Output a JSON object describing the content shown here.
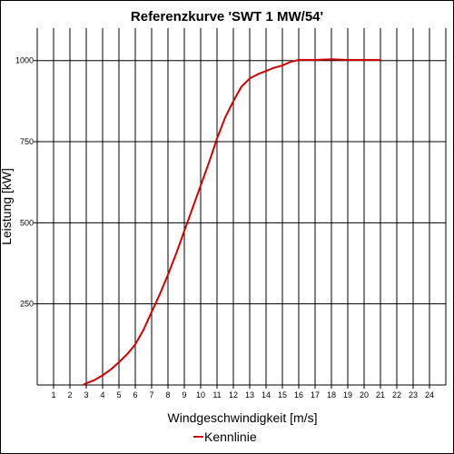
{
  "chart_data": {
    "type": "line",
    "title": "Referenzkurve 'SWT 1 MW/54'",
    "xlabel": "Windgeschwindigkeit [m/s]",
    "ylabel": "Leistung [kW]",
    "xlim": [
      0,
      25
    ],
    "ylim": [
      0,
      1100
    ],
    "x_ticks": [
      "1",
      "2",
      "3",
      "4",
      "5",
      "6",
      "7",
      "8",
      "9",
      "10",
      "11",
      "12",
      "13",
      "14",
      "15",
      "16",
      "17",
      "18",
      "19",
      "20",
      "21",
      "22",
      "23",
      "24"
    ],
    "y_ticks": [
      "250",
      "500",
      "750",
      "1000"
    ],
    "grid": true,
    "legend_position": "bottom-center",
    "series": [
      {
        "name": "Kennlinie",
        "color": "#d40000",
        "x": [
          2.8,
          3,
          3.5,
          4,
          4.5,
          5,
          5.5,
          6,
          6.5,
          7,
          7.5,
          8,
          8.5,
          9,
          9.5,
          10,
          10.5,
          11,
          11.5,
          12,
          12.5,
          13,
          13.5,
          14,
          14.5,
          15,
          15.5,
          16,
          17,
          18,
          19,
          20,
          21
        ],
        "y": [
          0,
          5,
          15,
          30,
          48,
          70,
          95,
          125,
          170,
          225,
          280,
          340,
          405,
          475,
          545,
          615,
          685,
          760,
          825,
          875,
          920,
          945,
          958,
          968,
          978,
          985,
          996,
          1002,
          1002,
          1004,
          1002,
          1002,
          1002
        ]
      }
    ]
  }
}
